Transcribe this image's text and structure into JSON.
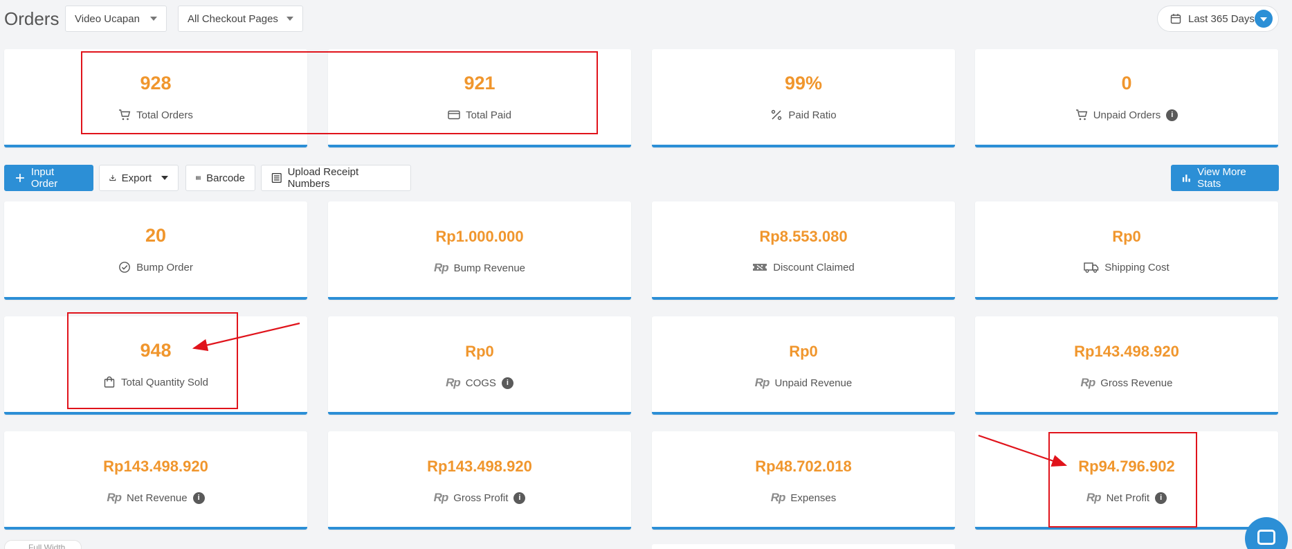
{
  "header": {
    "title": "Orders",
    "product_filter": "Video Ucapan",
    "page_filter": "All Checkout Pages",
    "date_range": "Last 365 Days"
  },
  "actions": {
    "input_order": "Input Order",
    "export": "Export",
    "barcode": "Barcode",
    "upload": "Upload Receipt Numbers",
    "view_more": "View More Stats"
  },
  "stats": {
    "total_orders": {
      "value": "928",
      "label": "Total Orders"
    },
    "total_paid": {
      "value": "921",
      "label": "Total Paid"
    },
    "paid_ratio": {
      "value": "99%",
      "label": "Paid Ratio"
    },
    "unpaid_orders": {
      "value": "0",
      "label": "Unpaid Orders"
    },
    "bump_order": {
      "value": "20",
      "label": "Bump Order"
    },
    "bump_revenue": {
      "value": "Rp1.000.000",
      "label": "Bump Revenue"
    },
    "discount_claimed": {
      "value": "Rp8.553.080",
      "label": "Discount Claimed"
    },
    "shipping_cost": {
      "value": "Rp0",
      "label": "Shipping Cost"
    },
    "total_qty": {
      "value": "948",
      "label": "Total Quantity Sold"
    },
    "cogs": {
      "value": "Rp0",
      "label": "COGS"
    },
    "unpaid_revenue": {
      "value": "Rp0",
      "label": "Unpaid Revenue"
    },
    "gross_revenue": {
      "value": "Rp143.498.920",
      "label": "Gross Revenue"
    },
    "net_revenue": {
      "value": "Rp143.498.920",
      "label": "Net Revenue"
    },
    "gross_profit": {
      "value": "Rp143.498.920",
      "label": "Gross Profit"
    },
    "expenses": {
      "value": "Rp48.702.018",
      "label": "Expenses"
    },
    "net_profit": {
      "value": "Rp94.796.902",
      "label": "Net Profit"
    }
  },
  "rp_glyph": "Rp",
  "info_glyph": "i",
  "footer": {
    "full_width": "Full Width"
  },
  "colors": {
    "accent": "#2c8fd6",
    "value": "#f0962d",
    "highlight": "#e0131b"
  }
}
